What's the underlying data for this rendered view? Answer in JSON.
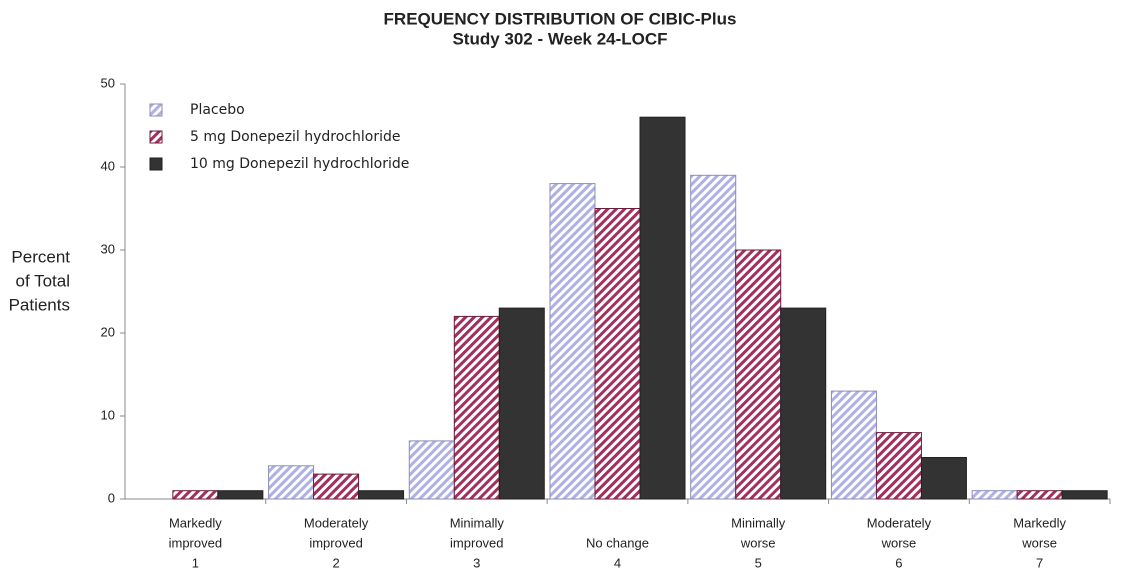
{
  "chart_data": {
    "type": "bar",
    "title": [
      "FREQUENCY DISTRIBUTION OF CIBIC-Plus",
      "Study 302 - Week 24-LOCF"
    ],
    "y_label": [
      "Percent",
      "of Total",
      "Patients"
    ],
    "categories": [
      [
        "Markedly",
        "improved",
        "1"
      ],
      [
        "Moderately",
        "improved",
        "2"
      ],
      [
        "Minimally",
        "improved",
        "3"
      ],
      [
        "No change",
        "4"
      ],
      [
        "Minimally",
        "worse",
        "5"
      ],
      [
        "Moderately",
        "worse",
        "6"
      ],
      [
        "Markedly",
        "worse",
        "7"
      ]
    ],
    "series": [
      {
        "name": "Placebo",
        "color": "#aeb0e6",
        "hatch": true,
        "values": [
          0,
          4,
          7,
          38,
          39,
          13,
          1
        ]
      },
      {
        "name": "5 mg Donepezil hydrochloride",
        "color": "#a3305c",
        "hatch": true,
        "values": [
          1,
          3,
          22,
          35,
          30,
          8,
          1
        ]
      },
      {
        "name": "10 mg Donepezil hydrochloride",
        "color": "#333333",
        "hatch": false,
        "values": [
          1,
          1,
          23,
          46,
          23,
          5,
          1
        ]
      }
    ],
    "ylim": [
      0,
      50
    ],
    "yticks": [
      0,
      10,
      20,
      30,
      40,
      50
    ],
    "grid": false,
    "legend": "upper-left"
  }
}
